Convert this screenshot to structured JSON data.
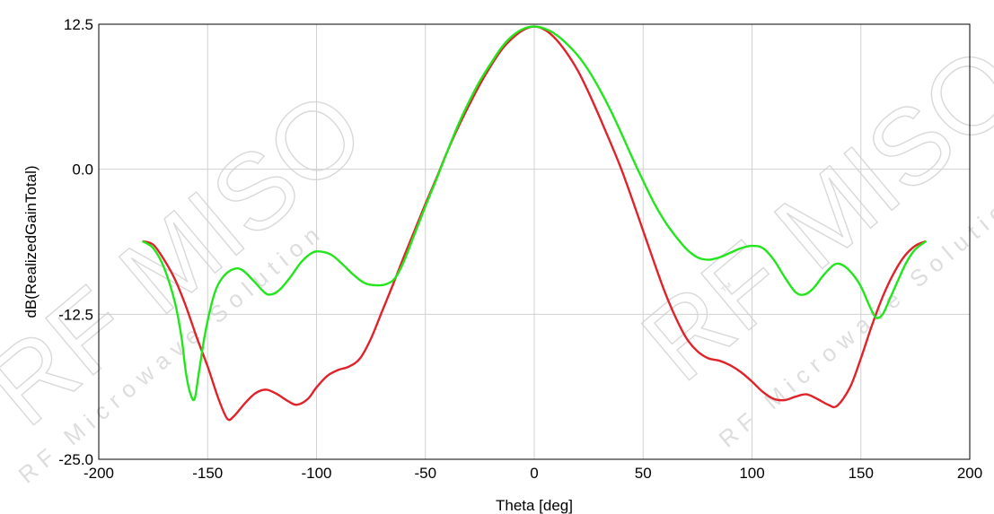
{
  "chart_data": {
    "type": "line",
    "title": "",
    "xlabel": "Theta [deg]",
    "ylabel": "dB(RealizedGainTotal)",
    "xlim": [
      -200,
      200
    ],
    "ylim": [
      -25.0,
      12.5
    ],
    "xticks": [
      "-200",
      "-150",
      "-100",
      "-50",
      "0",
      "50",
      "100",
      "150",
      "200"
    ],
    "yticks": [
      "12.5",
      "0.0",
      "-12.5",
      "-25.0"
    ],
    "grid": true,
    "legend": "none",
    "series": [
      {
        "color": "#e0232a",
        "points": [
          [
            -180,
            -6.2
          ],
          [
            -175,
            -6.5
          ],
          [
            -170,
            -7.8
          ],
          [
            -165,
            -9.5
          ],
          [
            -160,
            -11.8
          ],
          [
            -155,
            -14.5
          ],
          [
            -150,
            -17.0
          ],
          [
            -145,
            -19.8
          ],
          [
            -141,
            -21.5
          ],
          [
            -138,
            -21.3
          ],
          [
            -133,
            -20.2
          ],
          [
            -128,
            -19.3
          ],
          [
            -123,
            -19.0
          ],
          [
            -118,
            -19.4
          ],
          [
            -113,
            -20.0
          ],
          [
            -109,
            -20.3
          ],
          [
            -104,
            -19.8
          ],
          [
            -100,
            -18.8
          ],
          [
            -95,
            -17.8
          ],
          [
            -90,
            -17.3
          ],
          [
            -85,
            -17.0
          ],
          [
            -80,
            -16.3
          ],
          [
            -75,
            -14.6
          ],
          [
            -70,
            -12.3
          ],
          [
            -65,
            -10.0
          ],
          [
            -60,
            -7.6
          ],
          [
            -55,
            -5.3
          ],
          [
            -50,
            -3.0
          ],
          [
            -45,
            -0.8
          ],
          [
            -40,
            1.5
          ],
          [
            -35,
            3.6
          ],
          [
            -30,
            5.5
          ],
          [
            -25,
            7.3
          ],
          [
            -20,
            8.9
          ],
          [
            -15,
            10.3
          ],
          [
            -10,
            11.3
          ],
          [
            -5,
            12.0
          ],
          [
            0,
            12.3
          ],
          [
            5,
            12.0
          ],
          [
            10,
            11.2
          ],
          [
            15,
            10.0
          ],
          [
            20,
            8.5
          ],
          [
            25,
            6.6
          ],
          [
            30,
            4.5
          ],
          [
            35,
            2.3
          ],
          [
            40,
            0.0
          ],
          [
            45,
            -2.6
          ],
          [
            50,
            -5.3
          ],
          [
            55,
            -8.0
          ],
          [
            60,
            -10.6
          ],
          [
            65,
            -12.8
          ],
          [
            70,
            -14.6
          ],
          [
            75,
            -15.7
          ],
          [
            80,
            -16.3
          ],
          [
            85,
            -16.5
          ],
          [
            90,
            -16.9
          ],
          [
            95,
            -17.5
          ],
          [
            100,
            -18.3
          ],
          [
            105,
            -19.2
          ],
          [
            110,
            -19.8
          ],
          [
            115,
            -19.9
          ],
          [
            120,
            -19.6
          ],
          [
            125,
            -19.4
          ],
          [
            130,
            -19.8
          ],
          [
            135,
            -20.3
          ],
          [
            139,
            -20.4
          ],
          [
            145,
            -18.8
          ],
          [
            150,
            -16.3
          ],
          [
            155,
            -13.5
          ],
          [
            160,
            -11.0
          ],
          [
            165,
            -9.0
          ],
          [
            170,
            -7.5
          ],
          [
            175,
            -6.6
          ],
          [
            180,
            -6.2
          ]
        ]
      },
      {
        "color": "#22e51c",
        "points": [
          [
            -180,
            -6.2
          ],
          [
            -175,
            -6.8
          ],
          [
            -170,
            -8.5
          ],
          [
            -165,
            -11.5
          ],
          [
            -162,
            -14.5
          ],
          [
            -160,
            -17.5
          ],
          [
            -158,
            -19.3
          ],
          [
            -156,
            -19.8
          ],
          [
            -154,
            -17.5
          ],
          [
            -151,
            -14.0
          ],
          [
            -147,
            -10.8
          ],
          [
            -143,
            -9.3
          ],
          [
            -138,
            -8.6
          ],
          [
            -134,
            -8.7
          ],
          [
            -129,
            -9.6
          ],
          [
            -124,
            -10.6
          ],
          [
            -121,
            -10.8
          ],
          [
            -117,
            -10.4
          ],
          [
            -112,
            -9.3
          ],
          [
            -107,
            -8.0
          ],
          [
            -102,
            -7.2
          ],
          [
            -98,
            -7.1
          ],
          [
            -93,
            -7.4
          ],
          [
            -88,
            -8.2
          ],
          [
            -83,
            -9.1
          ],
          [
            -78,
            -9.8
          ],
          [
            -73,
            -10.0
          ],
          [
            -68,
            -9.9
          ],
          [
            -64,
            -9.4
          ],
          [
            -60,
            -8.0
          ],
          [
            -55,
            -5.6
          ],
          [
            -50,
            -3.2
          ],
          [
            -45,
            -0.9
          ],
          [
            -40,
            1.5
          ],
          [
            -35,
            3.8
          ],
          [
            -30,
            5.8
          ],
          [
            -25,
            7.6
          ],
          [
            -20,
            9.1
          ],
          [
            -15,
            10.5
          ],
          [
            -10,
            11.5
          ],
          [
            -5,
            12.1
          ],
          [
            0,
            12.3
          ],
          [
            5,
            12.1
          ],
          [
            10,
            11.6
          ],
          [
            15,
            10.8
          ],
          [
            20,
            9.8
          ],
          [
            25,
            8.5
          ],
          [
            30,
            6.9
          ],
          [
            35,
            5.1
          ],
          [
            40,
            3.1
          ],
          [
            45,
            1.0
          ],
          [
            50,
            -1.0
          ],
          [
            55,
            -2.9
          ],
          [
            60,
            -4.5
          ],
          [
            65,
            -5.8
          ],
          [
            70,
            -6.9
          ],
          [
            75,
            -7.6
          ],
          [
            80,
            -7.8
          ],
          [
            85,
            -7.6
          ],
          [
            90,
            -7.2
          ],
          [
            95,
            -6.8
          ],
          [
            100,
            -6.6
          ],
          [
            105,
            -6.8
          ],
          [
            110,
            -7.8
          ],
          [
            115,
            -9.3
          ],
          [
            120,
            -10.6
          ],
          [
            124,
            -10.8
          ],
          [
            128,
            -10.3
          ],
          [
            133,
            -9.1
          ],
          [
            138,
            -8.2
          ],
          [
            142,
            -8.3
          ],
          [
            146,
            -9.0
          ],
          [
            150,
            -10.1
          ],
          [
            154,
            -11.8
          ],
          [
            157,
            -12.8
          ],
          [
            160,
            -12.5
          ],
          [
            163,
            -11.3
          ],
          [
            167,
            -9.6
          ],
          [
            171,
            -8.0
          ],
          [
            175,
            -6.9
          ],
          [
            180,
            -6.2
          ]
        ]
      }
    ]
  },
  "watermark": {
    "brand": "RF MISO",
    "tagline": "RF Microwave Solution",
    "tm": "™"
  }
}
